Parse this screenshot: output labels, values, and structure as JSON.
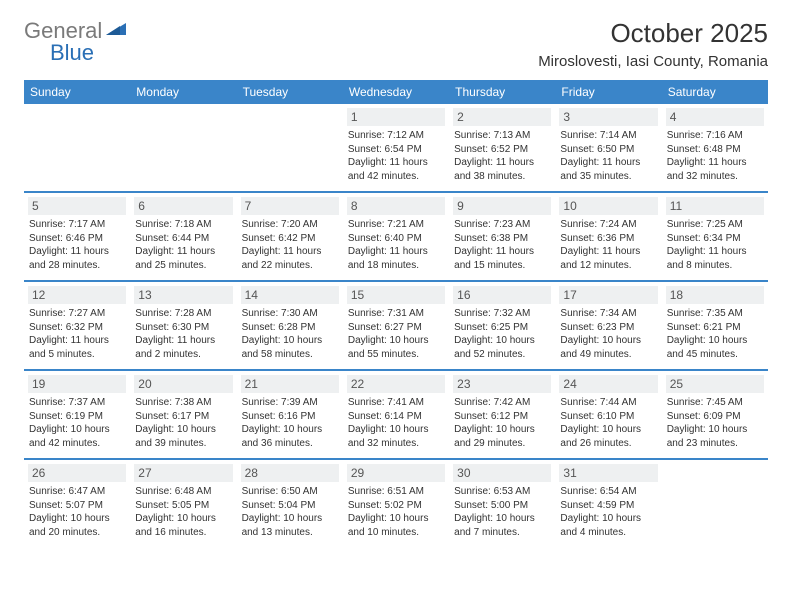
{
  "logo": {
    "word1": "General",
    "word2": "Blue"
  },
  "title": "October 2025",
  "location": "Miroslovesti, Iasi County, Romania",
  "header_bg": "#3a85c9",
  "daynum_bg": "#eef0f1",
  "text_color": "#333333",
  "day_names": [
    "Sunday",
    "Monday",
    "Tuesday",
    "Wednesday",
    "Thursday",
    "Friday",
    "Saturday"
  ],
  "weeks": [
    [
      {
        "n": "",
        "sr": "",
        "ss": "",
        "dl1": "",
        "dl2": ""
      },
      {
        "n": "",
        "sr": "",
        "ss": "",
        "dl1": "",
        "dl2": ""
      },
      {
        "n": "",
        "sr": "",
        "ss": "",
        "dl1": "",
        "dl2": ""
      },
      {
        "n": "1",
        "sr": "Sunrise: 7:12 AM",
        "ss": "Sunset: 6:54 PM",
        "dl1": "Daylight: 11 hours",
        "dl2": "and 42 minutes."
      },
      {
        "n": "2",
        "sr": "Sunrise: 7:13 AM",
        "ss": "Sunset: 6:52 PM",
        "dl1": "Daylight: 11 hours",
        "dl2": "and 38 minutes."
      },
      {
        "n": "3",
        "sr": "Sunrise: 7:14 AM",
        "ss": "Sunset: 6:50 PM",
        "dl1": "Daylight: 11 hours",
        "dl2": "and 35 minutes."
      },
      {
        "n": "4",
        "sr": "Sunrise: 7:16 AM",
        "ss": "Sunset: 6:48 PM",
        "dl1": "Daylight: 11 hours",
        "dl2": "and 32 minutes."
      }
    ],
    [
      {
        "n": "5",
        "sr": "Sunrise: 7:17 AM",
        "ss": "Sunset: 6:46 PM",
        "dl1": "Daylight: 11 hours",
        "dl2": "and 28 minutes."
      },
      {
        "n": "6",
        "sr": "Sunrise: 7:18 AM",
        "ss": "Sunset: 6:44 PM",
        "dl1": "Daylight: 11 hours",
        "dl2": "and 25 minutes."
      },
      {
        "n": "7",
        "sr": "Sunrise: 7:20 AM",
        "ss": "Sunset: 6:42 PM",
        "dl1": "Daylight: 11 hours",
        "dl2": "and 22 minutes."
      },
      {
        "n": "8",
        "sr": "Sunrise: 7:21 AM",
        "ss": "Sunset: 6:40 PM",
        "dl1": "Daylight: 11 hours",
        "dl2": "and 18 minutes."
      },
      {
        "n": "9",
        "sr": "Sunrise: 7:23 AM",
        "ss": "Sunset: 6:38 PM",
        "dl1": "Daylight: 11 hours",
        "dl2": "and 15 minutes."
      },
      {
        "n": "10",
        "sr": "Sunrise: 7:24 AM",
        "ss": "Sunset: 6:36 PM",
        "dl1": "Daylight: 11 hours",
        "dl2": "and 12 minutes."
      },
      {
        "n": "11",
        "sr": "Sunrise: 7:25 AM",
        "ss": "Sunset: 6:34 PM",
        "dl1": "Daylight: 11 hours",
        "dl2": "and 8 minutes."
      }
    ],
    [
      {
        "n": "12",
        "sr": "Sunrise: 7:27 AM",
        "ss": "Sunset: 6:32 PM",
        "dl1": "Daylight: 11 hours",
        "dl2": "and 5 minutes."
      },
      {
        "n": "13",
        "sr": "Sunrise: 7:28 AM",
        "ss": "Sunset: 6:30 PM",
        "dl1": "Daylight: 11 hours",
        "dl2": "and 2 minutes."
      },
      {
        "n": "14",
        "sr": "Sunrise: 7:30 AM",
        "ss": "Sunset: 6:28 PM",
        "dl1": "Daylight: 10 hours",
        "dl2": "and 58 minutes."
      },
      {
        "n": "15",
        "sr": "Sunrise: 7:31 AM",
        "ss": "Sunset: 6:27 PM",
        "dl1": "Daylight: 10 hours",
        "dl2": "and 55 minutes."
      },
      {
        "n": "16",
        "sr": "Sunrise: 7:32 AM",
        "ss": "Sunset: 6:25 PM",
        "dl1": "Daylight: 10 hours",
        "dl2": "and 52 minutes."
      },
      {
        "n": "17",
        "sr": "Sunrise: 7:34 AM",
        "ss": "Sunset: 6:23 PM",
        "dl1": "Daylight: 10 hours",
        "dl2": "and 49 minutes."
      },
      {
        "n": "18",
        "sr": "Sunrise: 7:35 AM",
        "ss": "Sunset: 6:21 PM",
        "dl1": "Daylight: 10 hours",
        "dl2": "and 45 minutes."
      }
    ],
    [
      {
        "n": "19",
        "sr": "Sunrise: 7:37 AM",
        "ss": "Sunset: 6:19 PM",
        "dl1": "Daylight: 10 hours",
        "dl2": "and 42 minutes."
      },
      {
        "n": "20",
        "sr": "Sunrise: 7:38 AM",
        "ss": "Sunset: 6:17 PM",
        "dl1": "Daylight: 10 hours",
        "dl2": "and 39 minutes."
      },
      {
        "n": "21",
        "sr": "Sunrise: 7:39 AM",
        "ss": "Sunset: 6:16 PM",
        "dl1": "Daylight: 10 hours",
        "dl2": "and 36 minutes."
      },
      {
        "n": "22",
        "sr": "Sunrise: 7:41 AM",
        "ss": "Sunset: 6:14 PM",
        "dl1": "Daylight: 10 hours",
        "dl2": "and 32 minutes."
      },
      {
        "n": "23",
        "sr": "Sunrise: 7:42 AM",
        "ss": "Sunset: 6:12 PM",
        "dl1": "Daylight: 10 hours",
        "dl2": "and 29 minutes."
      },
      {
        "n": "24",
        "sr": "Sunrise: 7:44 AM",
        "ss": "Sunset: 6:10 PM",
        "dl1": "Daylight: 10 hours",
        "dl2": "and 26 minutes."
      },
      {
        "n": "25",
        "sr": "Sunrise: 7:45 AM",
        "ss": "Sunset: 6:09 PM",
        "dl1": "Daylight: 10 hours",
        "dl2": "and 23 minutes."
      }
    ],
    [
      {
        "n": "26",
        "sr": "Sunrise: 6:47 AM",
        "ss": "Sunset: 5:07 PM",
        "dl1": "Daylight: 10 hours",
        "dl2": "and 20 minutes."
      },
      {
        "n": "27",
        "sr": "Sunrise: 6:48 AM",
        "ss": "Sunset: 5:05 PM",
        "dl1": "Daylight: 10 hours",
        "dl2": "and 16 minutes."
      },
      {
        "n": "28",
        "sr": "Sunrise: 6:50 AM",
        "ss": "Sunset: 5:04 PM",
        "dl1": "Daylight: 10 hours",
        "dl2": "and 13 minutes."
      },
      {
        "n": "29",
        "sr": "Sunrise: 6:51 AM",
        "ss": "Sunset: 5:02 PM",
        "dl1": "Daylight: 10 hours",
        "dl2": "and 10 minutes."
      },
      {
        "n": "30",
        "sr": "Sunrise: 6:53 AM",
        "ss": "Sunset: 5:00 PM",
        "dl1": "Daylight: 10 hours",
        "dl2": "and 7 minutes."
      },
      {
        "n": "31",
        "sr": "Sunrise: 6:54 AM",
        "ss": "Sunset: 4:59 PM",
        "dl1": "Daylight: 10 hours",
        "dl2": "and 4 minutes."
      },
      {
        "n": "",
        "sr": "",
        "ss": "",
        "dl1": "",
        "dl2": ""
      }
    ]
  ]
}
